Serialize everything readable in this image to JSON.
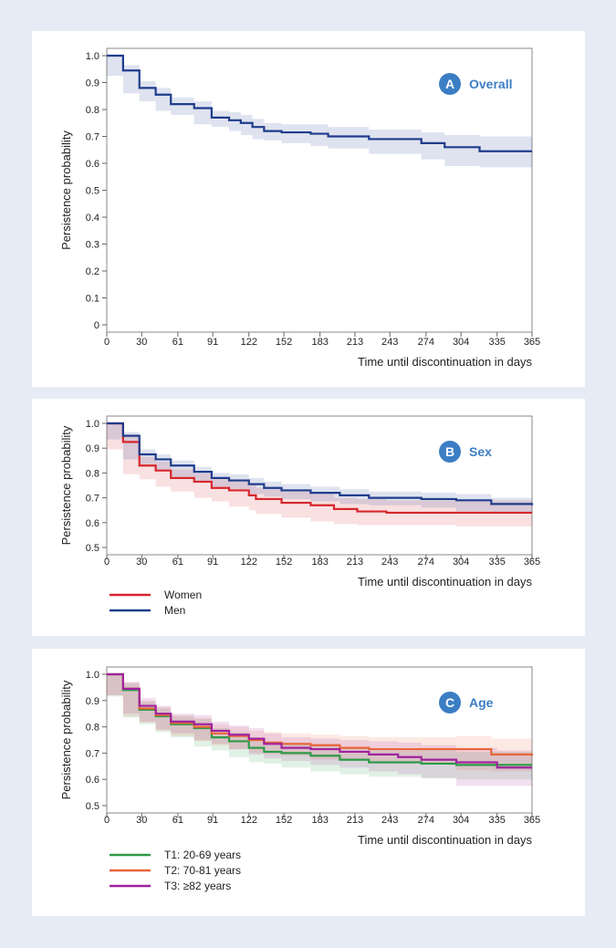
{
  "colors": {
    "overall": "#1f3c8c",
    "women": "#d7262c",
    "men": "#1f3c8c",
    "t1": "#2e9a48",
    "t2": "#e8663a",
    "t3": "#a0229e",
    "badge": "#3c7ec4",
    "badge_text": "#3c7ec4"
  },
  "chart_data": [
    {
      "id": "A",
      "type": "line",
      "badge": "A",
      "title": "Overall",
      "xlabel": "Time until discontinuation in days",
      "ylabel": "Persistence probability",
      "xticks": [
        "0",
        "30",
        "61",
        "91",
        "122",
        "152",
        "183",
        "213",
        "243",
        "274",
        "304",
        "335",
        "365"
      ],
      "xlim": [
        0,
        365
      ],
      "ylim": [
        0,
        1
      ],
      "yticks": [
        "1.0",
        "0.9",
        "0.8",
        "0.7",
        "0.6",
        "0.5",
        "0.4",
        "0.3",
        "0.2",
        "0.1",
        "0"
      ],
      "series": [
        {
          "name": "Overall",
          "color_key": "overall",
          "x": [
            0,
            14,
            28,
            42,
            55,
            75,
            90,
            105,
            115,
            125,
            135,
            150,
            175,
            190,
            225,
            270,
            290,
            320,
            365
          ],
          "y": [
            1.0,
            0.945,
            0.88,
            0.855,
            0.82,
            0.805,
            0.77,
            0.76,
            0.75,
            0.735,
            0.72,
            0.715,
            0.71,
            0.7,
            0.69,
            0.675,
            0.66,
            0.645,
            0.645
          ],
          "lower": [
            1.0,
            0.925,
            0.86,
            0.83,
            0.795,
            0.78,
            0.745,
            0.735,
            0.72,
            0.705,
            0.69,
            0.685,
            0.675,
            0.665,
            0.655,
            0.635,
            0.615,
            0.59,
            0.585
          ],
          "upper": [
            1.0,
            0.965,
            0.905,
            0.88,
            0.845,
            0.83,
            0.795,
            0.79,
            0.78,
            0.765,
            0.75,
            0.745,
            0.745,
            0.735,
            0.725,
            0.715,
            0.705,
            0.7,
            0.705
          ]
        }
      ]
    },
    {
      "id": "B",
      "type": "line",
      "badge": "B",
      "title": "Sex",
      "xlabel": "Time until discontinuation in days",
      "ylabel": "Persistence probability",
      "xticks": [
        "0",
        "30",
        "61",
        "91",
        "122",
        "152",
        "183",
        "213",
        "243",
        "274",
        "304",
        "335",
        "365"
      ],
      "xlim": [
        0,
        365
      ],
      "ylim": [
        0.5,
        1
      ],
      "yticks": [
        "1.0",
        "0.9",
        "0.8",
        "0.7",
        "0.6",
        "0.5"
      ],
      "legend": [
        "Women",
        "Men"
      ],
      "series": [
        {
          "name": "Women",
          "color_key": "women",
          "x": [
            0,
            14,
            28,
            42,
            55,
            75,
            90,
            105,
            122,
            128,
            150,
            175,
            195,
            215,
            240,
            270,
            300,
            365
          ],
          "y": [
            1.0,
            0.925,
            0.83,
            0.81,
            0.78,
            0.765,
            0.74,
            0.73,
            0.71,
            0.695,
            0.68,
            0.67,
            0.655,
            0.645,
            0.64,
            0.64,
            0.64,
            0.64
          ],
          "lower": [
            1.0,
            0.895,
            0.795,
            0.775,
            0.745,
            0.725,
            0.7,
            0.685,
            0.665,
            0.65,
            0.635,
            0.62,
            0.605,
            0.595,
            0.59,
            0.59,
            0.59,
            0.585
          ],
          "upper": [
            1.0,
            0.955,
            0.865,
            0.845,
            0.815,
            0.8,
            0.78,
            0.77,
            0.755,
            0.74,
            0.725,
            0.715,
            0.7,
            0.695,
            0.69,
            0.69,
            0.69,
            0.69
          ]
        },
        {
          "name": "Men",
          "color_key": "men",
          "x": [
            0,
            14,
            28,
            42,
            55,
            75,
            90,
            105,
            122,
            135,
            150,
            175,
            200,
            225,
            270,
            300,
            330,
            365
          ],
          "y": [
            1.0,
            0.95,
            0.875,
            0.855,
            0.83,
            0.805,
            0.78,
            0.77,
            0.755,
            0.74,
            0.73,
            0.72,
            0.71,
            0.7,
            0.695,
            0.69,
            0.675,
            0.67
          ],
          "lower": [
            1.0,
            0.935,
            0.855,
            0.835,
            0.81,
            0.785,
            0.76,
            0.745,
            0.735,
            0.715,
            0.705,
            0.695,
            0.685,
            0.675,
            0.67,
            0.66,
            0.645,
            0.64
          ],
          "upper": [
            1.0,
            0.965,
            0.895,
            0.875,
            0.85,
            0.825,
            0.8,
            0.795,
            0.78,
            0.765,
            0.755,
            0.745,
            0.735,
            0.725,
            0.72,
            0.715,
            0.7,
            0.7
          ]
        }
      ]
    },
    {
      "id": "C",
      "type": "line",
      "badge": "C",
      "title": "Age",
      "xlabel": "Time until discontinuation in days",
      "ylabel": "Persistence probability",
      "xticks": [
        "0",
        "30",
        "61",
        "91",
        "122",
        "152",
        "183",
        "213",
        "243",
        "274",
        "304",
        "335",
        "365"
      ],
      "xlim": [
        0,
        365
      ],
      "ylim": [
        0.5,
        1
      ],
      "yticks": [
        "1.0",
        "0.9",
        "0.8",
        "0.7",
        "0.6",
        "0.5"
      ],
      "legend": [
        "T1: 20-69 years",
        "T2: 70-81 years",
        "T3: ≥82 years"
      ],
      "series": [
        {
          "name": "T1: 20-69 years",
          "color_key": "t1",
          "x": [
            0,
            14,
            28,
            42,
            55,
            75,
            90,
            105,
            122,
            135,
            150,
            175,
            200,
            225,
            270,
            300,
            365
          ],
          "y": [
            1.0,
            0.94,
            0.865,
            0.84,
            0.81,
            0.795,
            0.76,
            0.745,
            0.72,
            0.705,
            0.7,
            0.69,
            0.675,
            0.665,
            0.66,
            0.655,
            0.655
          ],
          "lower": [
            1.0,
            0.915,
            0.835,
            0.81,
            0.78,
            0.76,
            0.725,
            0.71,
            0.685,
            0.665,
            0.66,
            0.645,
            0.63,
            0.62,
            0.61,
            0.605,
            0.6
          ],
          "upper": [
            1.0,
            0.965,
            0.895,
            0.87,
            0.84,
            0.83,
            0.795,
            0.78,
            0.755,
            0.745,
            0.74,
            0.735,
            0.72,
            0.71,
            0.71,
            0.705,
            0.71
          ]
        },
        {
          "name": "T2: 70-81 years",
          "color_key": "t2",
          "x": [
            0,
            14,
            28,
            42,
            55,
            75,
            90,
            105,
            122,
            135,
            150,
            175,
            200,
            225,
            270,
            300,
            330,
            365
          ],
          "y": [
            1.0,
            0.945,
            0.87,
            0.845,
            0.815,
            0.8,
            0.775,
            0.765,
            0.75,
            0.74,
            0.735,
            0.73,
            0.72,
            0.715,
            0.715,
            0.715,
            0.695,
            0.69
          ],
          "lower": [
            1.0,
            0.92,
            0.84,
            0.815,
            0.785,
            0.765,
            0.745,
            0.73,
            0.715,
            0.7,
            0.695,
            0.69,
            0.675,
            0.67,
            0.665,
            0.66,
            0.635,
            0.63
          ],
          "upper": [
            1.0,
            0.97,
            0.9,
            0.875,
            0.845,
            0.835,
            0.81,
            0.8,
            0.785,
            0.78,
            0.775,
            0.77,
            0.765,
            0.76,
            0.76,
            0.765,
            0.755,
            0.75
          ]
        },
        {
          "name": "T3: ≥82 years",
          "color_key": "t3",
          "x": [
            0,
            14,
            28,
            42,
            55,
            75,
            90,
            105,
            122,
            135,
            150,
            175,
            200,
            225,
            250,
            270,
            300,
            335,
            365
          ],
          "y": [
            1.0,
            0.945,
            0.88,
            0.85,
            0.82,
            0.81,
            0.785,
            0.77,
            0.755,
            0.735,
            0.72,
            0.715,
            0.705,
            0.695,
            0.685,
            0.675,
            0.665,
            0.645,
            0.645
          ],
          "lower": [
            1.0,
            0.92,
            0.85,
            0.82,
            0.79,
            0.775,
            0.75,
            0.735,
            0.715,
            0.695,
            0.68,
            0.67,
            0.655,
            0.645,
            0.63,
            0.62,
            0.605,
            0.575,
            0.575
          ],
          "upper": [
            1.0,
            0.97,
            0.91,
            0.88,
            0.85,
            0.845,
            0.82,
            0.805,
            0.795,
            0.775,
            0.76,
            0.755,
            0.75,
            0.745,
            0.74,
            0.73,
            0.72,
            0.71,
            0.71
          ]
        }
      ]
    }
  ]
}
